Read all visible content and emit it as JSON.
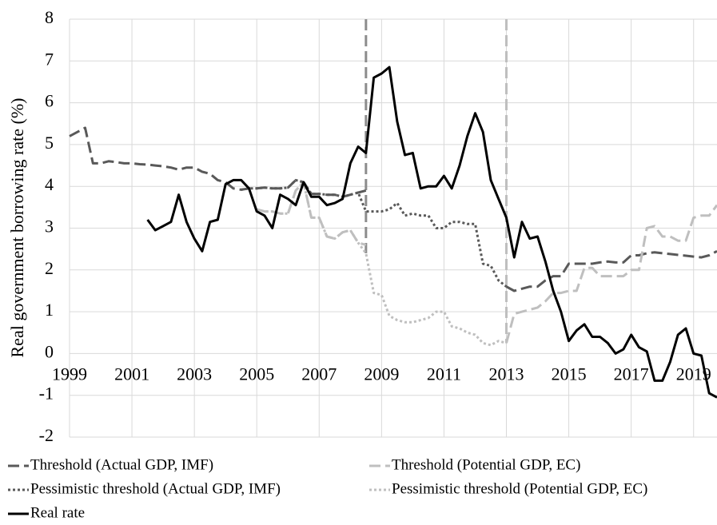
{
  "chart_data": {
    "type": "line",
    "y_label": "Real government borrowing rate (%)",
    "x": [
      1999,
      1999.25,
      1999.5,
      1999.75,
      2000,
      2000.25,
      2000.5,
      2000.75,
      2001,
      2001.25,
      2001.5,
      2001.75,
      2002,
      2002.25,
      2002.5,
      2002.75,
      2003,
      2003.25,
      2003.5,
      2003.75,
      2004,
      2004.25,
      2004.5,
      2004.75,
      2005,
      2005.25,
      2005.5,
      2005.75,
      2006,
      2006.25,
      2006.5,
      2006.75,
      2007,
      2007.25,
      2007.5,
      2007.75,
      2008,
      2008.25,
      2008.5,
      2008.75,
      2009,
      2009.25,
      2009.5,
      2009.75,
      2010,
      2010.25,
      2010.5,
      2010.75,
      2011,
      2011.25,
      2011.5,
      2011.75,
      2012,
      2012.25,
      2012.5,
      2012.75,
      2013,
      2013.25,
      2013.5,
      2013.75,
      2014,
      2014.25,
      2014.5,
      2014.75,
      2015,
      2015.25,
      2015.5,
      2015.75,
      2016,
      2016.25,
      2016.5,
      2016.75,
      2017,
      2017.25,
      2017.5,
      2017.75,
      2018,
      2018.25,
      2018.5,
      2018.75,
      2019,
      2019.25,
      2019.5,
      2019.75
    ],
    "series": [
      {
        "name": "Threshold (Actual GDP, IMF)",
        "color": "#595959",
        "dash": "dash",
        "values": [
          5.2,
          5.3,
          5.4,
          4.55,
          4.55,
          4.6,
          4.58,
          4.55,
          4.55,
          4.53,
          4.52,
          4.5,
          4.48,
          4.45,
          4.4,
          4.45,
          4.45,
          4.35,
          4.3,
          4.15,
          4.1,
          3.95,
          3.92,
          3.95,
          3.95,
          3.97,
          3.95,
          3.95,
          3.97,
          4.15,
          4.1,
          3.82,
          3.82,
          3.8,
          3.8,
          3.75,
          3.8,
          3.85,
          3.9,
          null,
          null,
          null,
          null,
          null,
          null,
          null,
          null,
          null,
          null,
          null,
          null,
          null,
          null,
          null,
          null,
          null,
          1.6,
          1.5,
          1.55,
          1.6,
          1.6,
          1.75,
          1.85,
          1.85,
          2.15,
          2.15,
          2.15,
          2.15,
          2.18,
          2.2,
          2.18,
          2.18,
          2.35,
          2.35,
          2.4,
          2.42,
          2.4,
          2.38,
          2.36,
          2.34,
          2.32,
          2.3,
          2.35,
          2.45
        ]
      },
      {
        "name": "Threshold (Potential GDP, EC)",
        "color": "#bfbfbf",
        "dash": "dash",
        "values": [
          null,
          null,
          null,
          null,
          null,
          null,
          null,
          null,
          null,
          null,
          null,
          null,
          null,
          null,
          null,
          null,
          null,
          null,
          null,
          null,
          null,
          null,
          null,
          null,
          3.45,
          3.4,
          3.4,
          3.35,
          3.35,
          3.9,
          4.1,
          3.25,
          3.25,
          2.8,
          2.75,
          2.9,
          2.95,
          2.65,
          2.6,
          null,
          null,
          null,
          null,
          null,
          null,
          null,
          null,
          null,
          null,
          null,
          null,
          null,
          null,
          null,
          null,
          null,
          0.25,
          0.95,
          1.0,
          1.05,
          1.1,
          1.25,
          1.45,
          1.45,
          1.5,
          1.5,
          2.05,
          2.05,
          1.85,
          1.85,
          1.85,
          1.85,
          2.0,
          2.0,
          3.0,
          3.05,
          2.8,
          2.8,
          2.7,
          2.7,
          3.25,
          3.3,
          3.3,
          3.55
        ]
      },
      {
        "name": "Pessimistic threshold (Actual GDP, IMF)",
        "color": "#595959",
        "dash": "dot",
        "values": [
          null,
          null,
          null,
          null,
          null,
          null,
          null,
          null,
          null,
          null,
          null,
          null,
          null,
          null,
          null,
          null,
          null,
          null,
          null,
          null,
          null,
          null,
          3.92,
          3.95,
          3.95,
          3.97,
          3.95,
          3.95,
          3.97,
          4.15,
          4.1,
          3.82,
          3.82,
          3.8,
          3.8,
          3.75,
          3.8,
          3.85,
          3.4,
          3.4,
          3.4,
          3.45,
          3.6,
          3.3,
          3.35,
          3.3,
          3.3,
          3.0,
          3.0,
          3.15,
          3.15,
          3.1,
          3.1,
          2.15,
          2.1,
          1.75,
          1.6,
          null,
          null,
          null,
          null,
          null,
          null,
          null,
          null,
          null,
          null,
          null,
          null,
          null,
          null,
          null,
          null,
          null,
          null,
          null,
          null,
          null,
          null,
          null,
          null,
          null,
          null,
          null
        ]
      },
      {
        "name": "Pessimistic threshold (Potential GDP, EC)",
        "color": "#bfbfbf",
        "dash": "dot",
        "values": [
          null,
          null,
          null,
          null,
          null,
          null,
          null,
          null,
          null,
          null,
          null,
          null,
          null,
          null,
          null,
          null,
          null,
          null,
          null,
          null,
          null,
          null,
          null,
          null,
          3.45,
          3.4,
          3.4,
          3.35,
          3.35,
          3.9,
          4.1,
          3.25,
          3.25,
          2.8,
          2.75,
          2.9,
          2.95,
          2.65,
          2.4,
          1.45,
          1.4,
          0.9,
          0.8,
          0.75,
          0.75,
          0.8,
          0.85,
          1.0,
          1.0,
          0.65,
          0.6,
          0.5,
          0.45,
          0.25,
          0.2,
          0.3,
          0.25,
          null,
          null,
          null,
          null,
          null,
          null,
          null,
          null,
          null,
          null,
          null,
          null,
          null,
          null,
          null,
          null,
          null,
          null,
          null,
          null,
          null,
          null,
          null,
          null,
          null,
          null,
          null
        ]
      },
      {
        "name": "Real rate",
        "color": "#000000",
        "dash": "solid",
        "values": [
          null,
          null,
          null,
          null,
          null,
          null,
          null,
          null,
          null,
          null,
          3.2,
          2.95,
          3.05,
          3.15,
          3.8,
          3.15,
          2.75,
          2.45,
          3.15,
          3.2,
          4.05,
          4.15,
          4.15,
          3.95,
          3.4,
          3.3,
          3.0,
          3.8,
          3.7,
          3.55,
          4.1,
          3.75,
          3.75,
          3.55,
          3.6,
          3.7,
          4.55,
          4.95,
          4.8,
          6.6,
          6.7,
          6.85,
          5.55,
          4.75,
          4.8,
          3.95,
          4.0,
          4.0,
          4.25,
          3.95,
          4.5,
          5.2,
          5.75,
          5.3,
          4.15,
          3.7,
          3.25,
          2.3,
          3.15,
          2.75,
          2.8,
          2.2,
          1.5,
          1.0,
          0.3,
          0.55,
          0.7,
          0.4,
          0.4,
          0.25,
          0.0,
          0.1,
          0.45,
          0.15,
          0.05,
          -0.65,
          -0.65,
          -0.2,
          0.45,
          0.6,
          0.0,
          -0.05,
          -0.95,
          -1.05
        ]
      }
    ],
    "vlines": [
      {
        "x": 2008.5,
        "color": "#8c8c8c"
      },
      {
        "x": 2013,
        "color": "#bfbfbf"
      }
    ],
    "xlim": [
      1999,
      2019.75
    ],
    "xticks": [
      1999,
      2001,
      2003,
      2005,
      2007,
      2009,
      2011,
      2013,
      2015,
      2017,
      2019
    ],
    "ylim": [
      -2,
      8
    ],
    "yticks": [
      -2,
      -1,
      0,
      1,
      2,
      3,
      4,
      5,
      6,
      7,
      8
    ],
    "grid": true,
    "legend": "bottom"
  }
}
